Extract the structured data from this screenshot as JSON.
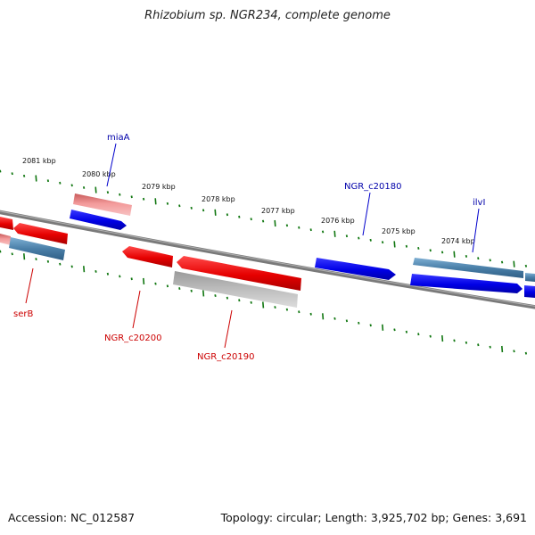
{
  "title": "Rhizobium sp. NGR234, complete genome",
  "footer": {
    "accession": "Accession: NC_012587",
    "summary": "Topology: circular; Length: 3,925,702 bp; Genes: 3,691"
  },
  "kbp_labels": [
    "2081 kbp",
    "2080 kbp",
    "2079 kbp",
    "2078 kbp",
    "2077 kbp",
    "2076 kbp",
    "2075 kbp",
    "2074 kbp"
  ],
  "gene_labels": {
    "miaA": "miaA",
    "NGR_c20180": "NGR_c20180",
    "ilvI": "ilvI",
    "serB": "serB",
    "NGR_c20200": "NGR_c20200",
    "NGR_c20190": "NGR_c20190"
  },
  "colors": {
    "forward_gene": "#0000ee",
    "reverse_gene": "#ee0000",
    "forward_label": "#0000aa",
    "reverse_label": "#cc0000",
    "pseudo_forward": "#4a7fa8",
    "pseudo_reverse": "#f08a8a",
    "rna_gray": "#b5b5b5",
    "backbone": "#7a7a7a",
    "tick": "#117711"
  }
}
